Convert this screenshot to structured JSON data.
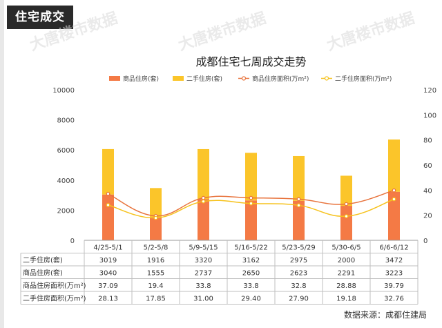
{
  "header": {
    "section_tag": "住宅成交"
  },
  "watermarks": [
    "大唐楼市数据",
    "大唐楼市数据",
    "大唐楼市数据"
  ],
  "source": "数据来源：成都住建局",
  "colors": {
    "bar_new": "#f47a45",
    "bar_second": "#fbc52a",
    "line_new": "#e8733c",
    "line_second": "#f6c21c"
  },
  "chart_data": {
    "type": "bar+line",
    "title": "成都住宅七周成交走势",
    "categories": [
      "4/25-5/1",
      "5/2-5/8",
      "5/9-5/15",
      "5/16-5/22",
      "5/23-5/29",
      "5/30-6/5",
      "6/6-6/12"
    ],
    "left_axis": {
      "min": 0,
      "max": 10000,
      "ticks": [
        "0",
        "2000",
        "4000",
        "6000",
        "8000",
        "10000"
      ]
    },
    "right_axis": {
      "min": 0,
      "max": 120,
      "ticks": [
        "0",
        "20",
        "40",
        "60",
        "80",
        "100",
        "120"
      ]
    },
    "legend": [
      {
        "name": "商品住房(套)",
        "kind": "bar"
      },
      {
        "name": "二手住房(套)",
        "kind": "bar"
      },
      {
        "name": "商品住房面积(万m²)",
        "kind": "line"
      },
      {
        "name": "二手住房面积(万m²)",
        "kind": "line"
      }
    ],
    "series": [
      {
        "name": "商品住房(套)",
        "kind": "bar",
        "axis": "left",
        "values": [
          3040,
          1555,
          2737,
          2650,
          2623,
          2291,
          3223
        ]
      },
      {
        "name": "二手住房(套)",
        "kind": "bar",
        "axis": "left",
        "stacked_on": "商品住房(套)",
        "values": [
          3019,
          1916,
          3320,
          3162,
          2975,
          2000,
          3472
        ]
      },
      {
        "name": "商品住房面积(万m²)",
        "kind": "line",
        "axis": "right",
        "values": [
          37.09,
          19.4,
          33.8,
          33.8,
          32.8,
          28.88,
          39.79
        ]
      },
      {
        "name": "二手住房面积(万m²)",
        "kind": "line",
        "axis": "right",
        "values": [
          28.13,
          17.85,
          31.0,
          29.4,
          27.9,
          19.18,
          32.76
        ]
      }
    ],
    "table": {
      "rows": [
        {
          "label": "二手住房(套)",
          "cells": [
            "3019",
            "1916",
            "3320",
            "3162",
            "2975",
            "2000",
            "3472"
          ]
        },
        {
          "label": "商品住房(套)",
          "cells": [
            "3040",
            "1555",
            "2737",
            "2650",
            "2623",
            "2291",
            "3223"
          ]
        },
        {
          "label": "商品住房面积(万m²)",
          "cells": [
            "37.09",
            "19.4",
            "33.8",
            "33.8",
            "32.8",
            "28.88",
            "39.79"
          ]
        },
        {
          "label": "二手住房面积(万m²)",
          "cells": [
            "28.13",
            "17.85",
            "31.00",
            "29.40",
            "27.90",
            "19.18",
            "32.76"
          ]
        }
      ]
    }
  }
}
